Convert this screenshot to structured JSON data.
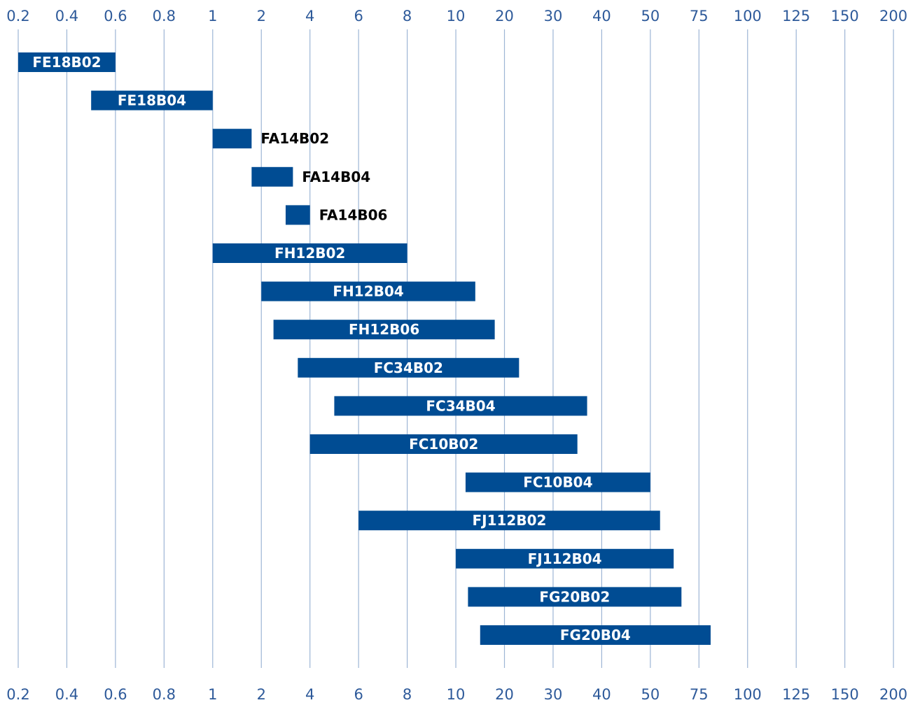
{
  "chart_data": {
    "type": "bar",
    "orientation": "horizontal-range",
    "title": "",
    "xlabel": "",
    "ylabel": "",
    "grid": true,
    "x_scale": "categorical ticks, evenly spaced",
    "x_ticks": [
      "0.2",
      "0.4",
      "0.6",
      "0.8",
      "1",
      "2",
      "4",
      "6",
      "8",
      "10",
      "20",
      "30",
      "40",
      "50",
      "75",
      "100",
      "125",
      "150",
      "200"
    ],
    "x_tick_values": [
      0.2,
      0.4,
      0.6,
      0.8,
      1,
      2,
      4,
      6,
      8,
      10,
      20,
      30,
      40,
      50,
      75,
      100,
      125,
      150,
      200
    ],
    "tick_labels_position": "top and bottom",
    "series": [
      {
        "bars": [
          {
            "label": "FE18B02",
            "start": 0.2,
            "end": 0.6,
            "label_inside": true
          },
          {
            "label": "FE18B04",
            "start": 0.5,
            "end": 1,
            "label_inside": true
          },
          {
            "label": "FA14B02",
            "start": 1,
            "end": 1.8,
            "label_inside": false
          },
          {
            "label": "FA14B04",
            "start": 1.8,
            "end": 3.3,
            "label_inside": false
          },
          {
            "label": "FA14B06",
            "start": 3,
            "end": 4,
            "label_inside": false
          },
          {
            "label": "FH12B02",
            "start": 1,
            "end": 8,
            "label_inside": true
          },
          {
            "label": "FH12B04",
            "start": 2,
            "end": 14,
            "label_inside": true
          },
          {
            "label": "FH12B06",
            "start": 2.5,
            "end": 18,
            "label_inside": true
          },
          {
            "label": "FC34B02",
            "start": 3.5,
            "end": 23,
            "label_inside": true
          },
          {
            "label": "FC34B04",
            "start": 5,
            "end": 37,
            "label_inside": true
          },
          {
            "label": "FC10B02",
            "start": 4,
            "end": 35,
            "label_inside": true
          },
          {
            "label": "FC10B04",
            "start": 12,
            "end": 50,
            "label_inside": true
          },
          {
            "label": "FJ112B02",
            "start": 6,
            "end": 55,
            "label_inside": true
          },
          {
            "label": "FJ112B04",
            "start": 10,
            "end": 62,
            "label_inside": true
          },
          {
            "label": "FG20B02",
            "start": 12.5,
            "end": 66,
            "label_inside": true
          },
          {
            "label": "FG20B04",
            "start": 15,
            "end": 81,
            "label_inside": true
          }
        ]
      }
    ]
  },
  "colors": {
    "bar": "#004C93",
    "grid": "#9DB5D5",
    "tick_text": "#2E5A9A",
    "label_inside": "#ffffff",
    "label_outside": "#000000"
  }
}
